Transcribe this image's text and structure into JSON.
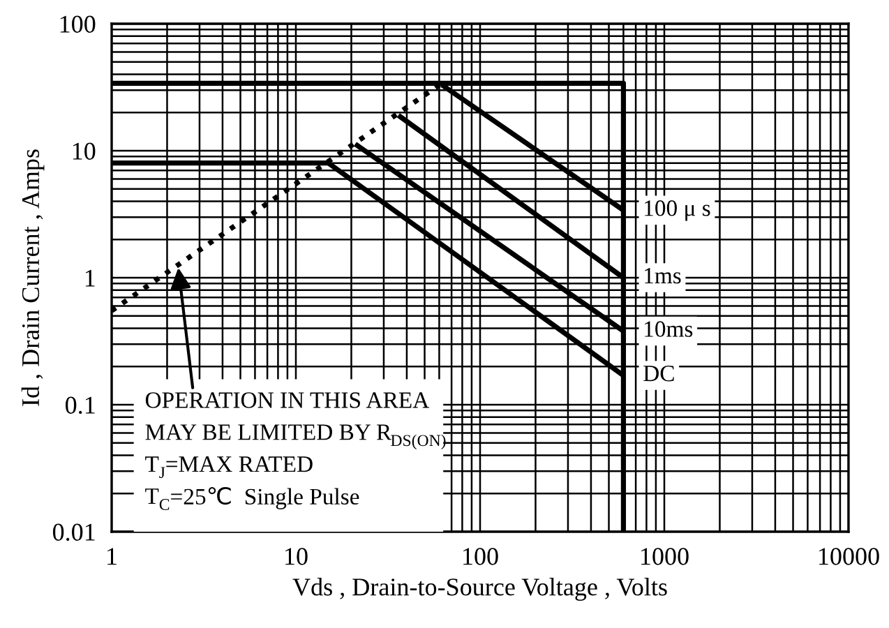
{
  "chart_data": {
    "type": "line",
    "xlabel": "Vds , Drain-to-Source Voltage , Volts",
    "ylabel": "Id , Drain Current , Amps",
    "log": "xy",
    "grid": true,
    "legend": false,
    "xlim": [
      1,
      10000
    ],
    "ylim": [
      0.01,
      100
    ],
    "xticks": [
      1,
      10,
      100,
      1000,
      10000
    ],
    "yticks": [
      0.01,
      0.1,
      1,
      10,
      100
    ],
    "series": [
      {
        "color": "#000000",
        "x": [
          1,
          600,
          600
        ],
        "values": [
          34,
          34,
          0.01
        ],
        "line_style": "solid"
      },
      {
        "color": "#000000",
        "x": [
          1,
          15
        ],
        "values": [
          8,
          8
        ],
        "line_style": "solid"
      },
      {
        "color": "#000000",
        "x": [
          1,
          62
        ],
        "values": [
          0.55,
          34
        ],
        "line_style": "dotted"
      },
      {
        "name": "100 μ s",
        "color": "#000000",
        "x": [
          62,
          600
        ],
        "values": [
          33,
          3.4
        ],
        "line_style": "solid"
      },
      {
        "name": "1ms",
        "color": "#000000",
        "x": [
          36,
          600
        ],
        "values": [
          19,
          1.0
        ],
        "line_style": "solid"
      },
      {
        "name": "10ms",
        "color": "#000000",
        "x": [
          21,
          600
        ],
        "values": [
          11.3,
          0.38
        ],
        "line_style": "solid"
      },
      {
        "name": "DC",
        "color": "#000000",
        "x": [
          15,
          600
        ],
        "values": [
          8,
          0.17
        ],
        "line_style": "solid"
      }
    ],
    "annotations": [
      {
        "text": "OPERATION IN THIS AREA",
        "x": 2.3,
        "y": 1.2
      },
      "MAY BE LIMITED BY R$_{DS(ON)}$",
      "T$_{J}$=MAX RATED",
      "T$_{C}$=25℃  Single Pulse"
    ]
  }
}
